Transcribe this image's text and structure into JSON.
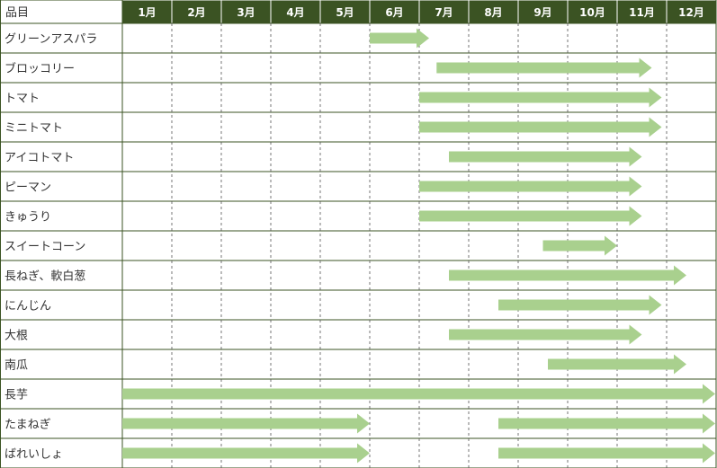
{
  "chart_data": {
    "type": "gantt",
    "header_label": "品目",
    "months": [
      "1月",
      "2月",
      "3月",
      "4月",
      "5月",
      "6月",
      "7月",
      "8月",
      "9月",
      "10月",
      "11月",
      "12月"
    ],
    "colors": {
      "header_bg": "#3b5323",
      "header_text": "#ffffff",
      "arrow": "#a9d08e",
      "grid_line": "#3b5323",
      "dashed_line": "#555555"
    },
    "items": [
      {
        "name": "グリーンアスパラ",
        "periods": [
          {
            "start": 5.0,
            "end": 6.2
          }
        ]
      },
      {
        "name": "ブロッコリー",
        "periods": [
          {
            "start": 6.35,
            "end": 10.7
          }
        ]
      },
      {
        "name": "トマト",
        "periods": [
          {
            "start": 6.0,
            "end": 10.9
          }
        ]
      },
      {
        "name": "ミニトマト",
        "periods": [
          {
            "start": 6.0,
            "end": 10.9
          }
        ]
      },
      {
        "name": "アイコトマト",
        "periods": [
          {
            "start": 6.6,
            "end": 10.5
          }
        ]
      },
      {
        "name": "ピーマン",
        "periods": [
          {
            "start": 6.0,
            "end": 10.5
          }
        ]
      },
      {
        "name": "きゅうり",
        "periods": [
          {
            "start": 6.0,
            "end": 10.5
          }
        ]
      },
      {
        "name": "スイートコーン",
        "periods": [
          {
            "start": 8.5,
            "end": 10.0
          }
        ]
      },
      {
        "name": "長ねぎ、軟白葱",
        "periods": [
          {
            "start": 6.6,
            "end": 11.4
          }
        ]
      },
      {
        "name": "にんじん",
        "periods": [
          {
            "start": 7.6,
            "end": 10.9
          }
        ]
      },
      {
        "name": "大根",
        "periods": [
          {
            "start": 6.6,
            "end": 10.5
          }
        ]
      },
      {
        "name": "南瓜",
        "periods": [
          {
            "start": 8.6,
            "end": 11.4
          }
        ]
      },
      {
        "name": "長芋",
        "periods": [
          {
            "start": 0.0,
            "end": 12.0
          }
        ]
      },
      {
        "name": "たまねぎ",
        "periods": [
          {
            "start": 0.0,
            "end": 5.0
          },
          {
            "start": 7.6,
            "end": 12.0
          }
        ]
      },
      {
        "name": "ばれいしょ",
        "periods": [
          {
            "start": 0.0,
            "end": 5.0
          },
          {
            "start": 7.6,
            "end": 12.0
          }
        ]
      }
    ]
  }
}
